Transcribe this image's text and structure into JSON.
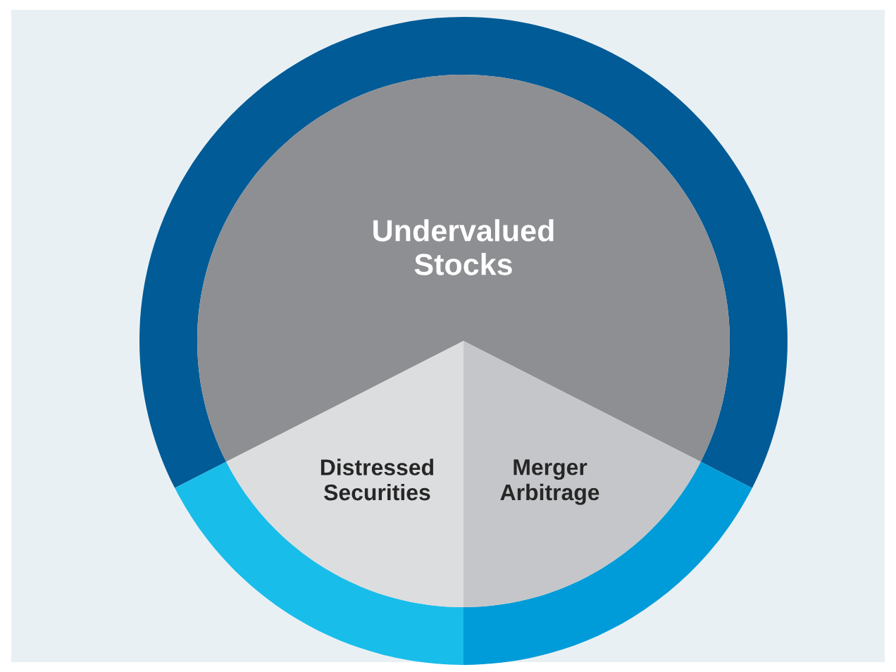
{
  "chart_data": {
    "type": "pie",
    "categories": [
      "Undervalued Stocks",
      "Merger Arbitrage",
      "Distressed Securities"
    ],
    "series": [
      {
        "type": "donut",
        "values": [
          65,
          17.5,
          17.5
        ],
        "colors": [
          "#005b97",
          "#009cd9",
          "#19bdea"
        ]
      },
      {
        "values": [
          65,
          17.5,
          17.5
        ],
        "colors": [
          "#8e8f92",
          "#c5c6c9",
          "#dcdddf"
        ]
      }
    ]
  }
}
